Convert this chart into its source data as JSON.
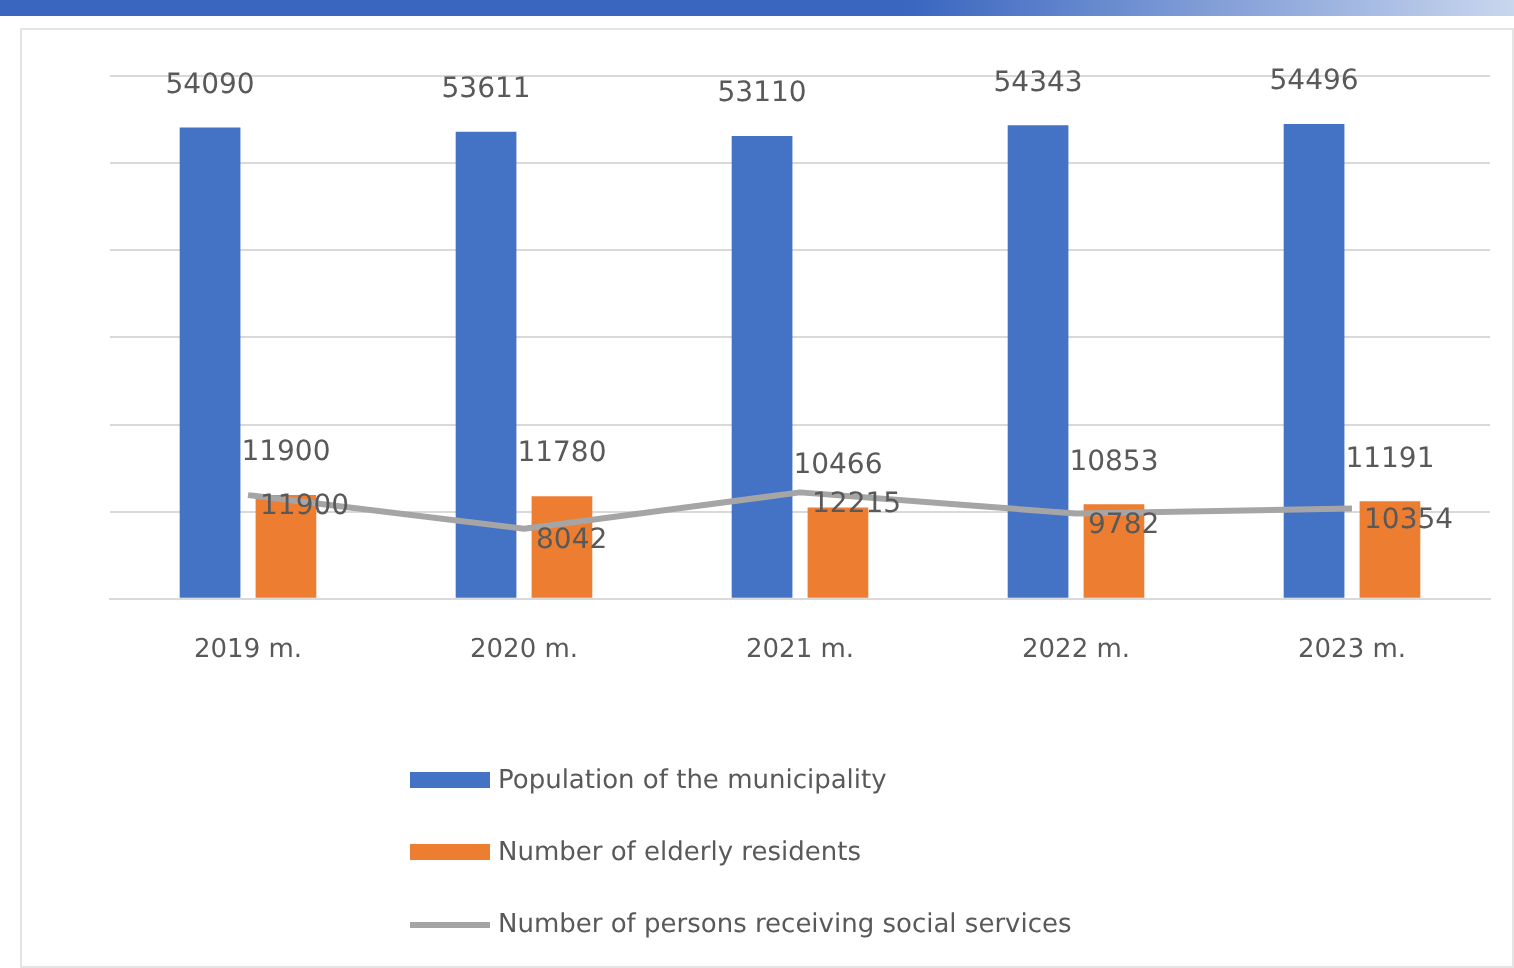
{
  "chart_data": {
    "type": "bar",
    "categories": [
      "2019 m.",
      "2020 m.",
      "2021 m.",
      "2022 m.",
      "2023 m."
    ],
    "series": [
      {
        "name": "Population of the municipality",
        "color": "#4472c4",
        "values": [
          54090,
          53611,
          53110,
          54343,
          54496
        ]
      },
      {
        "name": "Number of elderly residents",
        "color": "#ed7d31",
        "values": [
          11900,
          11780,
          10466,
          10853,
          11191
        ]
      },
      {
        "name": "Number of persons receiving social services",
        "type": "line",
        "color": "#a5a5a5",
        "values": [
          11900,
          8042,
          12215,
          9782,
          10354
        ]
      }
    ],
    "ylim": [
      0,
      60000
    ],
    "yticks": [
      {
        "value": 0,
        "label": null
      },
      {
        "value": 10000,
        "label": null
      },
      {
        "value": 20000,
        "label": null
      },
      {
        "value": 30000,
        "label": null
      },
      {
        "value": 40000,
        "label": null
      },
      {
        "value": 50000,
        "label": null
      },
      {
        "value": 60000,
        "label": null
      }
    ],
    "tick_labels": "x",
    "grid": "y",
    "legend": "bottom",
    "marker": "none",
    "data_labels": true
  }
}
